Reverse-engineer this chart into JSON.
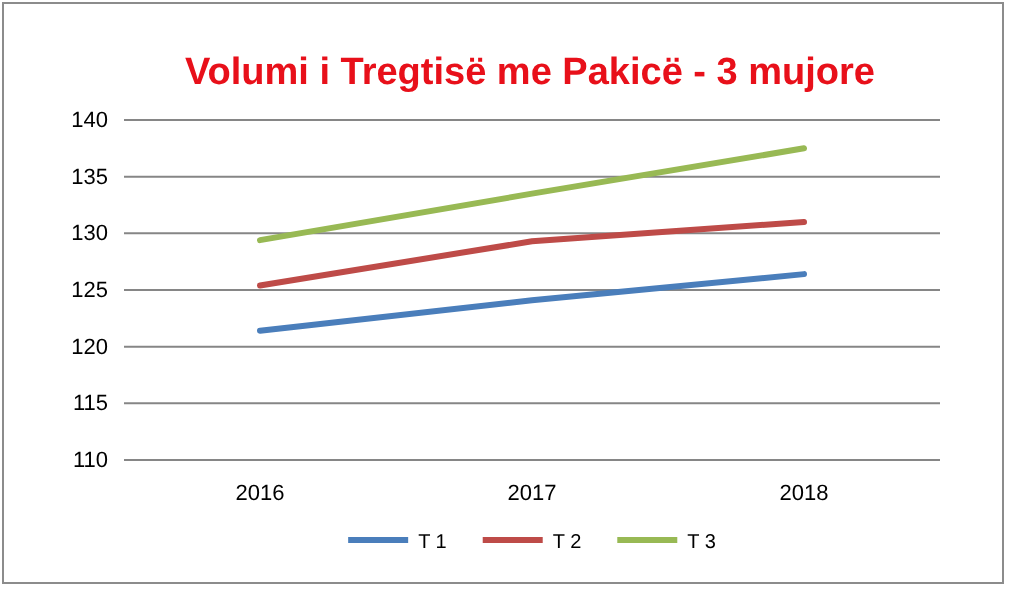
{
  "chart_data": {
    "type": "line",
    "title": "Volumi i Tregtisë me Pakicë - 3 mujore",
    "categories": [
      "2016",
      "2017",
      "2018"
    ],
    "series": [
      {
        "name": "T 1",
        "color": "#4a7ebb",
        "values": [
          121.4,
          124.1,
          126.4
        ]
      },
      {
        "name": "T 2",
        "color": "#be4b48",
        "values": [
          125.4,
          129.3,
          131.0
        ]
      },
      {
        "name": "T 3",
        "color": "#98b954",
        "values": [
          129.4,
          133.5,
          137.5
        ]
      }
    ],
    "ylim": [
      110,
      140
    ],
    "yticks": [
      110,
      115,
      120,
      125,
      130,
      135,
      140
    ],
    "grid": "y",
    "legend": "bottom",
    "marker": "none",
    "line_style": "solid"
  }
}
